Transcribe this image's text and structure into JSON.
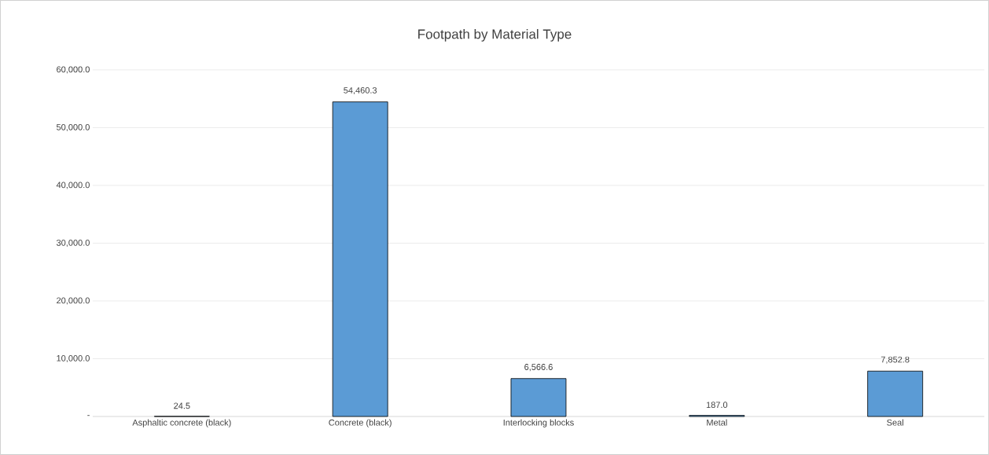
{
  "chart_data": {
    "type": "bar",
    "title": "Footpath by Material Type",
    "categories": [
      "Asphaltic concrete (black)",
      "Concrete (black)",
      "Interlocking blocks",
      "Metal",
      "Seal"
    ],
    "values": [
      24.5,
      54460.3,
      6566.6,
      187.0,
      7852.8
    ],
    "value_labels": [
      "24.5",
      "54,460.3",
      "6,566.6",
      "187.0",
      "7,852.8"
    ],
    "color": "#5b9bd5",
    "ylim": [
      0,
      60000
    ],
    "yticks": [
      {
        "value": 0,
        "label": "-"
      },
      {
        "value": 10000,
        "label": "10,000.0"
      },
      {
        "value": 20000,
        "label": "20,000.0"
      },
      {
        "value": 30000,
        "label": "30,000.0"
      },
      {
        "value": 40000,
        "label": "40,000.0"
      },
      {
        "value": 50000,
        "label": "50,000.0"
      },
      {
        "value": 60000,
        "label": "60,000.0"
      }
    ],
    "grid": "y"
  }
}
